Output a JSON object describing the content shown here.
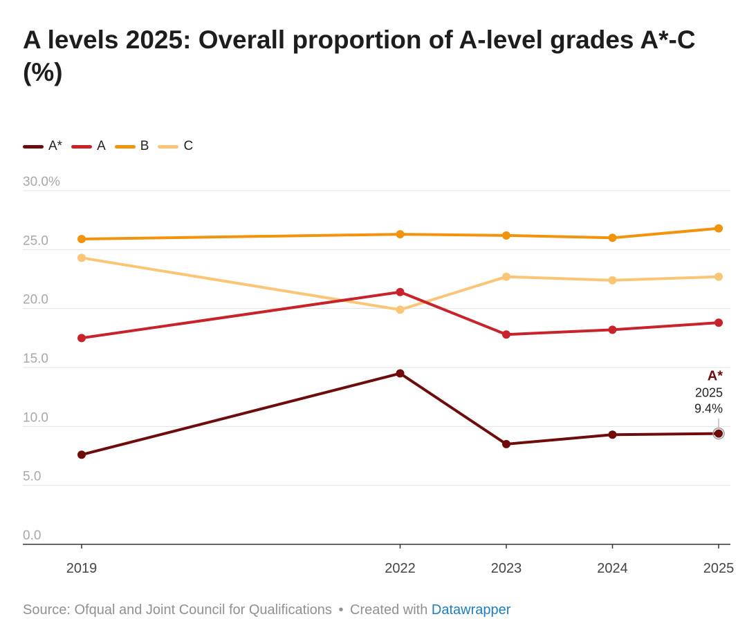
{
  "title": "A levels 2025: Overall proportion of A-level grades A*-C (%)",
  "legend": [
    {
      "label": "A*",
      "color": "#6e0b0b"
    },
    {
      "label": "A",
      "color": "#c8232a"
    },
    {
      "label": "B",
      "color": "#f2930c"
    },
    {
      "label": "C",
      "color": "#fbc576"
    }
  ],
  "chart_data": {
    "type": "line",
    "x": [
      2019,
      2022,
      2023,
      2024,
      2025
    ],
    "x_tick_labels": [
      "2019",
      "2022",
      "2023",
      "2024",
      "2025"
    ],
    "y_tick_labels": [
      "0.0",
      "5.0",
      "10.0",
      "15.0",
      "20.0",
      "25.0",
      "30.0%"
    ],
    "y_ticks": [
      0,
      5,
      10,
      15,
      20,
      25,
      30
    ],
    "ylim": [
      0,
      30
    ],
    "grid": true,
    "legend_position": "top-left",
    "series": [
      {
        "name": "A*",
        "color": "#6e0b0b",
        "values": [
          7.6,
          14.5,
          8.5,
          9.3,
          9.4
        ]
      },
      {
        "name": "A",
        "color": "#c8232a",
        "values": [
          17.5,
          21.4,
          17.8,
          18.2,
          18.8
        ]
      },
      {
        "name": "B",
        "color": "#f2930c",
        "values": [
          25.9,
          26.3,
          26.2,
          26.0,
          26.8
        ]
      },
      {
        "name": "C",
        "color": "#fbc576",
        "values": [
          24.3,
          19.9,
          22.7,
          22.4,
          22.7
        ]
      }
    ],
    "annotation": {
      "series": "A*",
      "line1": "A*",
      "line2": "2025",
      "line3": "9.4%"
    }
  },
  "footer": {
    "source": "Source: Ofqual and Joint Council for Qualifications",
    "separator": "•",
    "created": "Created with",
    "link": "Datawrapper"
  }
}
